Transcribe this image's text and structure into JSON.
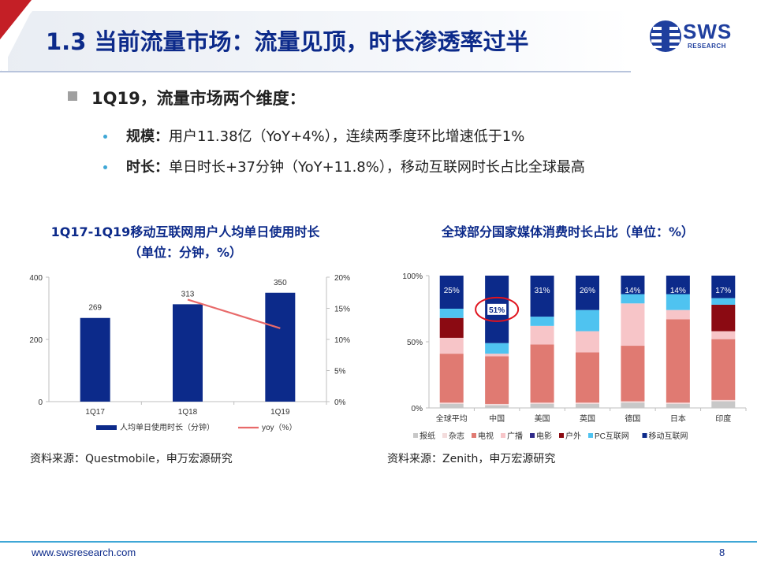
{
  "header": {
    "title": "1.3 当前流量市场：流量见顶，时长渗透率过半",
    "logo_word": "SWS",
    "logo_sub": "RESEARCH"
  },
  "main_point": "1Q19，流量市场两个维度：",
  "sub_points": [
    {
      "label": "规模：",
      "text": "用户11.38亿（YoY+4%），连续两季度环比增速低于1%"
    },
    {
      "label": "时长：",
      "text": "单日时长+37分钟（YoY+11.8%），移动互联网时长占比全球最高"
    }
  ],
  "left_chart_title": [
    "1Q17-1Q19移动互联网用户人均单日使用时长",
    "（单位：分钟，%）"
  ],
  "right_chart_title": "全球部分国家媒体消费时长占比（单位：%）",
  "left_source": "资料来源：Questmobile，申万宏源研究",
  "right_source": "资料来源：Zenith，申万宏源研究",
  "footer": {
    "url": "www.swsresearch.com",
    "page": "8"
  },
  "colors": {
    "navy": "#0c2a8a",
    "bar": "#0c2a8a",
    "line": "#e86a6a",
    "accent": "#3fa7d6"
  },
  "chart_data": [
    {
      "type": "bar",
      "categories": [
        "1Q17",
        "1Q18",
        "1Q19"
      ],
      "series": [
        {
          "name": "人均单日使用时长（分钟）",
          "values": [
            269,
            313,
            350
          ],
          "axis": "left",
          "type": "bar"
        },
        {
          "name": "yoy（%）",
          "values": [
            null,
            16.4,
            11.8
          ],
          "axis": "right",
          "type": "line"
        }
      ],
      "y_left": {
        "min": 0,
        "max": 400,
        "ticks": [
          "0",
          "200",
          "400"
        ],
        "tick_values": [
          0,
          200,
          400
        ]
      },
      "y_right": {
        "min": 0,
        "max": 20,
        "ticks": [
          "0%",
          "5%",
          "10%",
          "15%",
          "20%"
        ],
        "tick_values": [
          0,
          5,
          10,
          15,
          20
        ]
      },
      "data_labels": [
        "269",
        "313",
        "350"
      ],
      "legend": [
        "人均单日使用时长（分钟）",
        "yoy（%）"
      ],
      "legend_position": "bottom",
      "grid": false
    },
    {
      "type": "bar",
      "stacked": true,
      "categories": [
        "全球平均",
        "中国",
        "美国",
        "英国",
        "德国",
        "日本",
        "印度"
      ],
      "series": [
        {
          "name": "报纸",
          "color": "#c8c8c8",
          "values": [
            3,
            2,
            3,
            3,
            4,
            3,
            5
          ]
        },
        {
          "name": "杂志",
          "color": "#f3dcdc",
          "values": [
            1,
            1,
            1,
            1,
            1,
            1,
            1
          ]
        },
        {
          "name": "电视",
          "color": "#e07a72",
          "values": [
            37,
            36,
            44,
            38,
            42,
            63,
            46
          ]
        },
        {
          "name": "广播",
          "color": "#f7c5c8",
          "values": [
            12,
            2,
            14,
            16,
            32,
            7,
            6
          ]
        },
        {
          "name": "电影",
          "color": "#2f2a8a",
          "values": [
            0,
            0,
            0,
            0,
            0,
            0,
            0
          ]
        },
        {
          "name": "户外",
          "color": "#8b0a12",
          "values": [
            15,
            0,
            0,
            0,
            0,
            0,
            20
          ]
        },
        {
          "name": "PC互联网",
          "color": "#4fc3f0",
          "values": [
            7,
            8,
            7,
            16,
            7,
            12,
            5
          ]
        },
        {
          "name": "移动互联网",
          "color": "#0c2a8a",
          "values": [
            25,
            51,
            31,
            26,
            14,
            14,
            17
          ]
        }
      ],
      "data_labels": [
        "25%",
        "51%",
        "31%",
        "26%",
        "14%",
        "14%",
        "17%"
      ],
      "highlight": "中国",
      "y": {
        "min": 0,
        "max": 100,
        "ticks": [
          "0%",
          "50%",
          "100%"
        ],
        "tick_values": [
          0,
          50,
          100
        ]
      },
      "legend": [
        "报纸",
        "杂志",
        "电视",
        "广播",
        "电影",
        "户外",
        "PC互联网",
        "移动互联网"
      ],
      "legend_position": "bottom",
      "grid": false
    }
  ]
}
